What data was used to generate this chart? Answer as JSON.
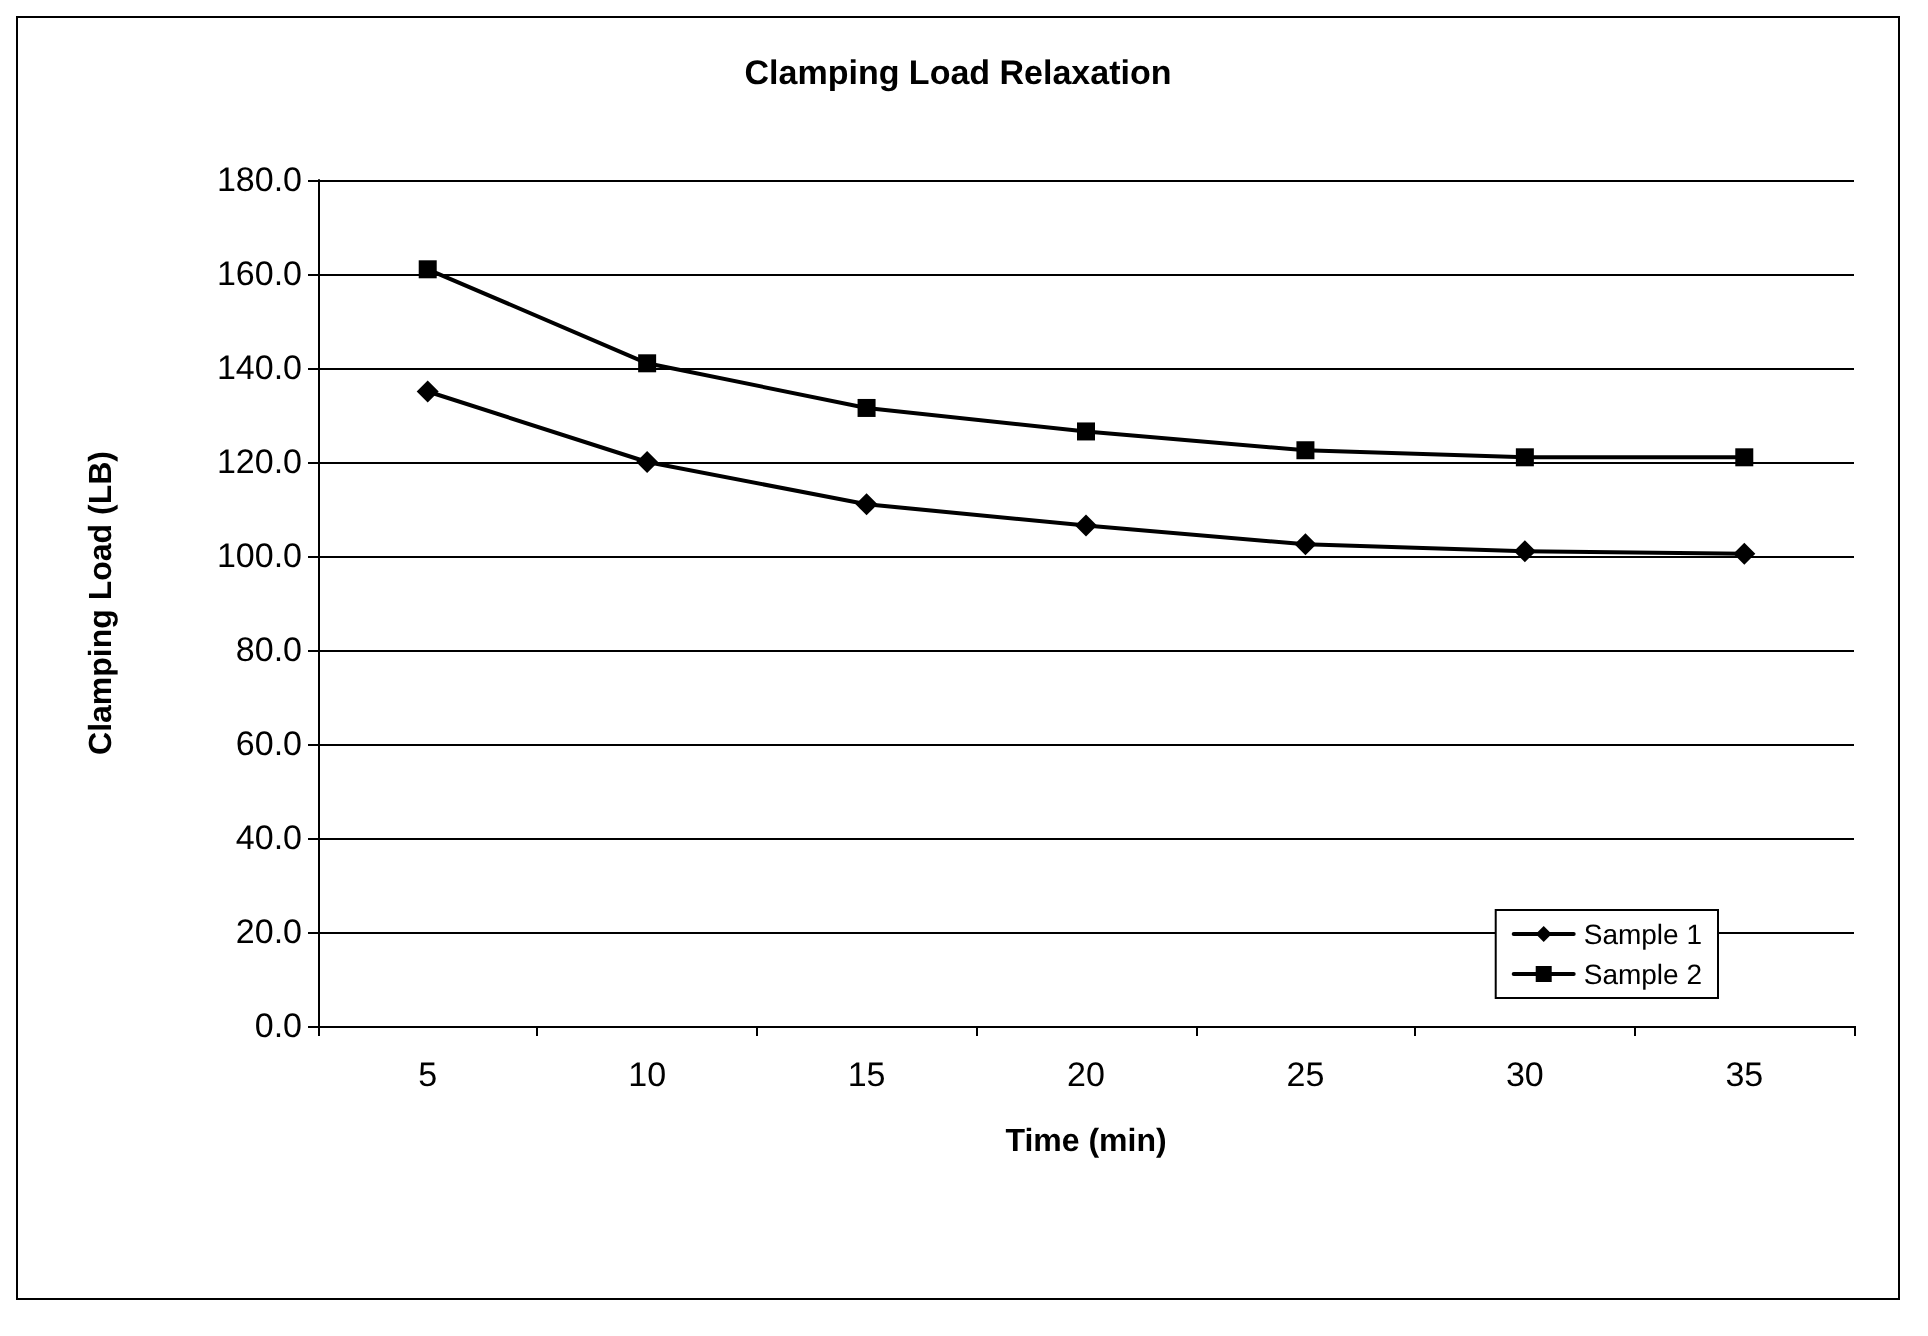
{
  "chart_data": {
    "type": "line",
    "title": "Clamping Load Relaxation",
    "xlabel": "Time (min)",
    "ylabel": "Clamping Load (LB)",
    "categories": [
      "5",
      "10",
      "15",
      "20",
      "25",
      "30",
      "35"
    ],
    "series": [
      {
        "name": "Sample 1",
        "color": "#000000",
        "marker": "diamond",
        "values": [
          135,
          120,
          111,
          106.5,
          102.5,
          101,
          100.5
        ]
      },
      {
        "name": "Sample 2",
        "color": "#000000",
        "marker": "square",
        "values": [
          161,
          141,
          131.5,
          126.5,
          122.5,
          121,
          121
        ]
      }
    ],
    "ylim": [
      0,
      180
    ],
    "yticks": [
      {
        "value": 0,
        "label": "0.0"
      },
      {
        "value": 20,
        "label": "20.0"
      },
      {
        "value": 40,
        "label": "40.0"
      },
      {
        "value": 60,
        "label": "60.0"
      },
      {
        "value": 80,
        "label": "80.0"
      },
      {
        "value": 100,
        "label": "100.0"
      },
      {
        "value": 120,
        "label": "120.0"
      },
      {
        "value": 140,
        "label": "140.0"
      },
      {
        "value": 160,
        "label": "160.0"
      },
      {
        "value": 180,
        "label": "180.0"
      }
    ],
    "grid": "y",
    "legend": "bottom right",
    "line_style": "solid"
  }
}
